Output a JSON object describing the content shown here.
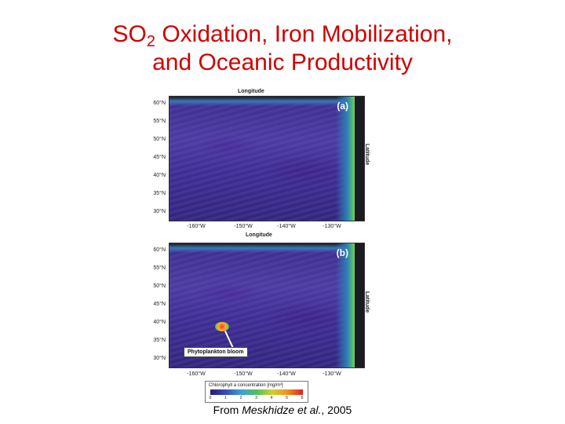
{
  "slide": {
    "title_line1_pre": "SO",
    "title_line1_sub": "2",
    "title_line1_post": " Oxidation, Iron Mobilization,",
    "title_line2": "and Oceanic Productivity"
  },
  "figure": {
    "panel_a": {
      "letter": "(a)",
      "top_axis_title": "Longitude",
      "bottom_axis_title": "Longitude",
      "right_axis_title": "Latitude",
      "lat_ticks": [
        "60°N",
        "55°N",
        "50°N",
        "45°N",
        "40°N",
        "35°N",
        "30°N"
      ],
      "lon_ticks": [
        "-160°W",
        "-150°W",
        "-140°W",
        "-130°W"
      ]
    },
    "panel_b": {
      "letter": "(b)",
      "right_axis_title": "Latitude",
      "lat_ticks": [
        "60°N",
        "55°N",
        "50°N",
        "45°N",
        "40°N",
        "35°N",
        "30°N"
      ],
      "lon_ticks": [
        "-160°W",
        "-150°W",
        "-140°W",
        "-130°W"
      ],
      "bloom_label": "Phytoplankton bloom"
    },
    "colorbar": {
      "title": "Chlorophyll a concentration [mg/m³]",
      "ticks": [
        "0",
        "1",
        "2",
        "3",
        "4",
        "5",
        "6"
      ]
    }
  },
  "caption": {
    "prefix": "From ",
    "author": "Meskhidze et al.",
    "suffix": ", 2005"
  },
  "colors": {
    "title": "#d00000",
    "ocean": "#3a2a8a"
  }
}
